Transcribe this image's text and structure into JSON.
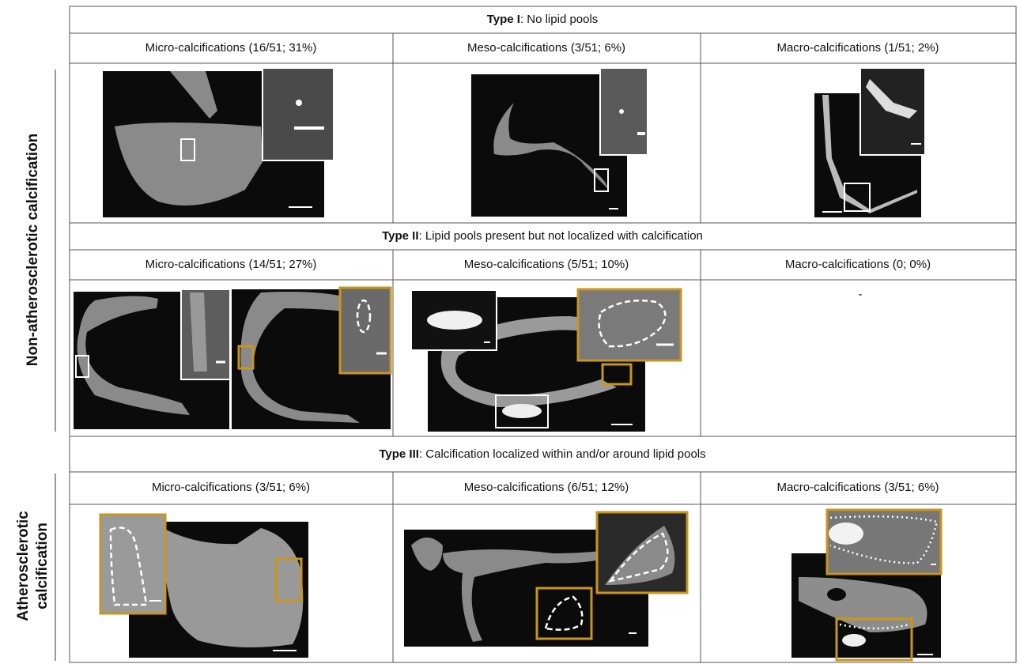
{
  "side_labels": {
    "top": "Non-atherosclerotic calcification",
    "bottom": [
      "Atherosclerotic",
      "calcification"
    ]
  },
  "sections": [
    {
      "type_label": "Type I",
      "description": ": No lipid pools",
      "columns": [
        "Micro-calcifications (16/51; 31%)",
        "Meso-calcifications (3/51; 6%)",
        "Macro-calcifications (1/51; 2%)"
      ]
    },
    {
      "type_label": "Type II",
      "description": ": Lipid pools present but not localized with calcification",
      "columns": [
        "Micro-calcifications (14/51; 27%)",
        "Meso-calcifications (5/51; 10%)",
        "Macro-calcifications (0; 0%)"
      ],
      "empty_cell": "-"
    },
    {
      "type_label": "Type III",
      "description": ": Calcification localized within and/or around lipid pools",
      "columns": [
        "Micro-calcifications (3/51; 6%)",
        "Meso-calcifications (6/51; 12%)",
        "Macro-calcifications (3/51; 6%)"
      ]
    }
  ]
}
